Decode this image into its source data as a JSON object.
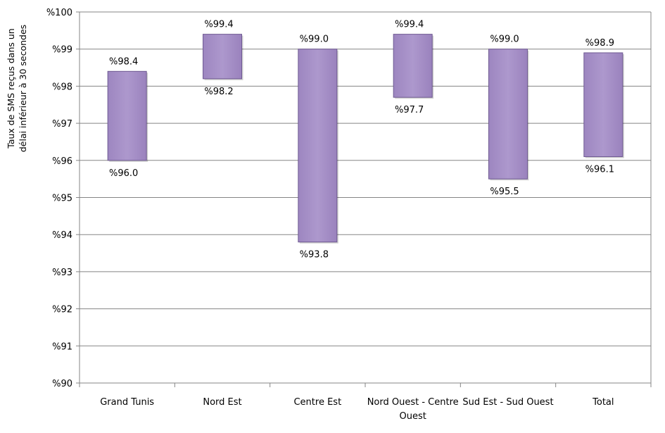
{
  "chart_data": {
    "type": "floating-bar",
    "title": "",
    "xlabel": "",
    "ylabel": [
      "Taux de SMS reçus dans un",
      "délai inférieur à 30 secondes"
    ],
    "ylim": [
      90,
      100
    ],
    "y_ticks": [
      "%90",
      "%91",
      "%92",
      "%93",
      "%94",
      "%95",
      "%96",
      "%97",
      "%98",
      "%99",
      "%100"
    ],
    "grid": true,
    "legend": "none",
    "bar_color": "#a58fc6",
    "bar_edge_color": "#6f5a92",
    "categories": [
      [
        "Grand Tunis"
      ],
      [
        "Nord Est"
      ],
      [
        "Centre Est"
      ],
      [
        "Nord Ouest - Centre",
        "Ouest"
      ],
      [
        "Sud Est - Sud Ouest"
      ],
      [
        "Total"
      ]
    ],
    "low": [
      96.0,
      98.2,
      93.8,
      97.7,
      95.5,
      96.1
    ],
    "high": [
      98.4,
      99.4,
      99.0,
      99.4,
      99.0,
      98.9
    ],
    "low_labels": [
      "%96.0",
      "%98.2",
      "%93.8",
      "%97.7",
      "%95.5",
      "%96.1"
    ],
    "high_labels": [
      "%98.4",
      "%99.4",
      "%99.0",
      "%99.4",
      "%99.0",
      "%98.9"
    ]
  }
}
